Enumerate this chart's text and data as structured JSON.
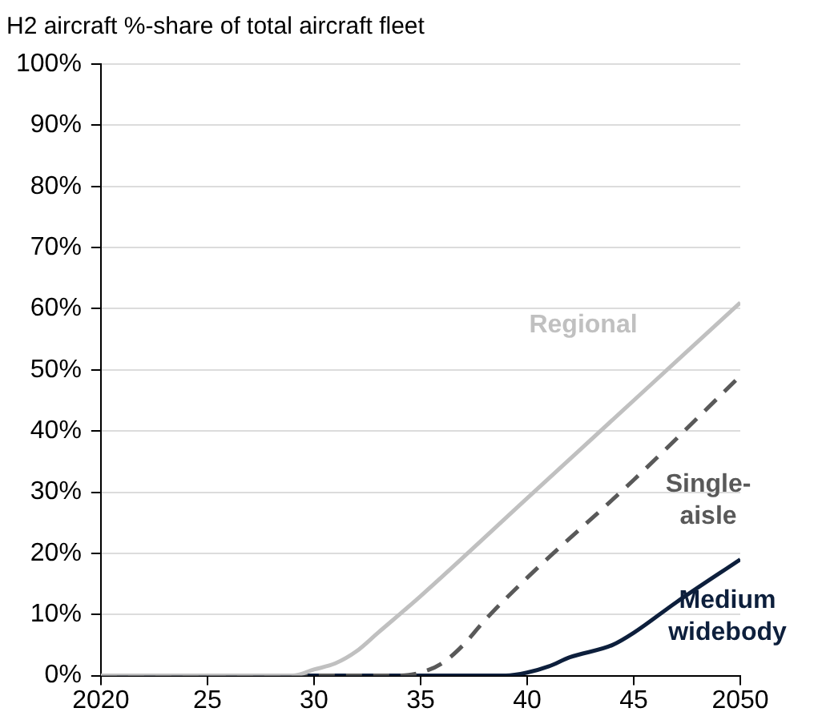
{
  "chart_data": {
    "type": "line",
    "title": "H2 aircraft %-share of total aircraft fleet",
    "xlim": [
      2020,
      2050
    ],
    "xticks": [
      2020,
      {
        "value": 2025,
        "label": "25"
      },
      {
        "value": 2030,
        "label": "30"
      },
      {
        "value": 2035,
        "label": "35"
      },
      {
        "value": 2040,
        "label": "40"
      },
      {
        "value": 2045,
        "label": "45"
      },
      2050
    ],
    "ylim": [
      0,
      100
    ],
    "yticks": [
      {
        "value": 0,
        "label": "0%"
      },
      {
        "value": 10,
        "label": "10%"
      },
      {
        "value": 20,
        "label": "20%"
      },
      {
        "value": 30,
        "label": "30%"
      },
      {
        "value": 40,
        "label": "40%"
      },
      {
        "value": 50,
        "label": "50%"
      },
      {
        "value": 60,
        "label": "60%"
      },
      {
        "value": 70,
        "label": "70%"
      },
      {
        "value": 80,
        "label": "80%"
      },
      {
        "value": 90,
        "label": "90%"
      },
      {
        "value": 100,
        "label": "100%"
      }
    ],
    "grid": "y",
    "legend": false,
    "marker": "none",
    "series": [
      {
        "name": "Regional",
        "color": "#c0c0c0",
        "line_style": "solid",
        "x": [
          2020,
          2029,
          2030,
          2031,
          2032,
          2033,
          2035,
          2040,
          2045,
          2050
        ],
        "values": [
          0,
          0,
          1,
          2,
          4,
          7,
          13,
          29,
          45,
          61
        ]
      },
      {
        "name": "Single-aisle",
        "color": "#595959",
        "line_style": "dashed",
        "x": [
          2020,
          2034,
          2035,
          2036,
          2037,
          2038,
          2040,
          2045,
          2050
        ],
        "values": [
          0,
          0,
          0.5,
          2,
          5,
          9,
          16,
          32,
          49
        ]
      },
      {
        "name": "Medium widebody",
        "color": "#0d1f3c",
        "line_style": "solid",
        "x": [
          2020,
          2039,
          2040,
          2041,
          2042,
          2044,
          2045,
          2047,
          2050
        ],
        "values": [
          0,
          0,
          0.5,
          1.5,
          3,
          5,
          7,
          12,
          19
        ]
      }
    ]
  }
}
